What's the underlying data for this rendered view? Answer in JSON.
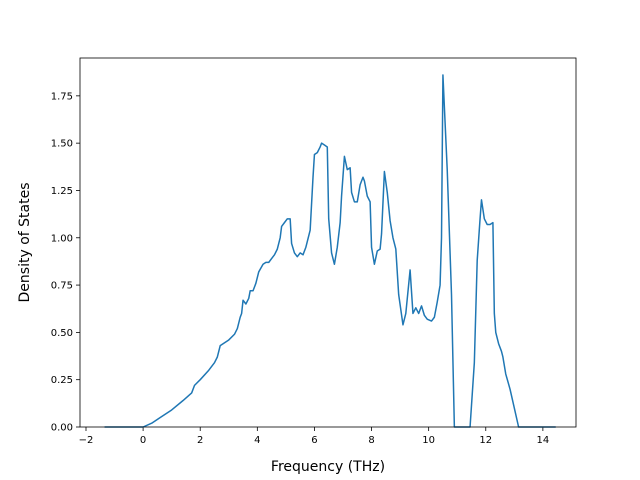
{
  "chart_data": {
    "type": "line",
    "xlabel": "Frequency (THz)",
    "ylabel": "Density of States",
    "xlim": [
      -2.21,
      15.16
    ],
    "ylim": [
      0,
      1.95
    ],
    "xticks": [
      {
        "value": -2,
        "label": "−2"
      },
      0,
      2,
      4,
      6,
      8,
      10,
      12,
      14
    ],
    "yticks": [
      {
        "value": 0,
        "label": "0.00"
      },
      {
        "value": 0.25,
        "label": "0.25"
      },
      {
        "value": 0.5,
        "label": "0.50"
      },
      {
        "value": 0.75,
        "label": "0.75"
      },
      {
        "value": 1,
        "label": "1.00"
      },
      {
        "value": 1.25,
        "label": "1.25"
      },
      {
        "value": 1.5,
        "label": "1.50"
      },
      {
        "value": 1.75,
        "label": "1.75"
      }
    ],
    "series": [
      {
        "color": "#1f77b4",
        "x": [
          -1.35,
          0,
          0.3,
          0.6,
          1.0,
          1.4,
          1.7,
          1.8,
          2.0,
          2.3,
          2.5,
          2.6,
          2.7,
          3.0,
          3.2,
          3.3,
          3.4,
          3.45,
          3.5,
          3.6,
          3.7,
          3.75,
          3.85,
          3.95,
          4.05,
          4.2,
          4.3,
          4.4,
          4.5,
          4.6,
          4.7,
          4.8,
          4.85,
          4.95,
          5.05,
          5.15,
          5.2,
          5.3,
          5.4,
          5.5,
          5.6,
          5.7,
          5.85,
          5.95,
          6.0,
          6.1,
          6.2,
          6.25,
          6.35,
          6.45,
          6.5,
          6.6,
          6.7,
          6.8,
          6.9,
          6.95,
          7.05,
          7.15,
          7.25,
          7.3,
          7.4,
          7.5,
          7.6,
          7.7,
          7.75,
          7.85,
          7.95,
          8.0,
          8.1,
          8.2,
          8.3,
          8.35,
          8.45,
          8.55,
          8.65,
          8.75,
          8.85,
          8.95,
          9.1,
          9.2,
          9.35,
          9.45,
          9.55,
          9.65,
          9.75,
          9.85,
          9.95,
          10.1,
          10.2,
          10.3,
          10.4,
          10.45,
          10.5,
          10.65,
          10.8,
          10.9,
          11.45,
          11.6,
          11.7,
          11.8,
          11.85,
          11.95,
          12.05,
          12.15,
          12.25,
          12.3,
          12.35,
          12.45,
          12.55,
          12.6,
          12.7,
          12.85,
          13.0,
          13.15,
          14.45
        ],
        "values": [
          0,
          0,
          0.02,
          0.05,
          0.09,
          0.14,
          0.18,
          0.22,
          0.25,
          0.3,
          0.34,
          0.37,
          0.43,
          0.46,
          0.49,
          0.52,
          0.58,
          0.6,
          0.67,
          0.65,
          0.68,
          0.72,
          0.72,
          0.76,
          0.82,
          0.86,
          0.87,
          0.87,
          0.89,
          0.91,
          0.94,
          1.0,
          1.06,
          1.08,
          1.1,
          1.1,
          0.97,
          0.92,
          0.9,
          0.92,
          0.91,
          0.95,
          1.04,
          1.32,
          1.44,
          1.45,
          1.48,
          1.5,
          1.49,
          1.48,
          1.1,
          0.92,
          0.86,
          0.95,
          1.08,
          1.22,
          1.43,
          1.36,
          1.37,
          1.24,
          1.19,
          1.19,
          1.28,
          1.32,
          1.3,
          1.22,
          1.19,
          0.95,
          0.86,
          0.93,
          0.94,
          1.02,
          1.35,
          1.24,
          1.09,
          1.0,
          0.94,
          0.7,
          0.54,
          0.6,
          0.83,
          0.6,
          0.63,
          0.6,
          0.64,
          0.59,
          0.57,
          0.56,
          0.58,
          0.66,
          0.75,
          1.0,
          1.86,
          1.36,
          0.7,
          0,
          0,
          0.34,
          0.88,
          1.1,
          1.2,
          1.1,
          1.07,
          1.07,
          1.08,
          0.6,
          0.5,
          0.44,
          0.4,
          0.37,
          0.28,
          0.2,
          0.1,
          0,
          0
        ]
      }
    ]
  }
}
